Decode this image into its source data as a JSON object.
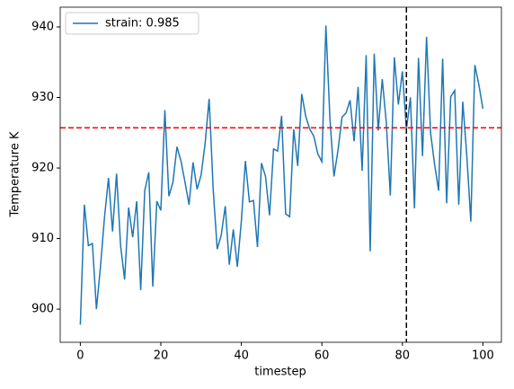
{
  "chart_data": {
    "type": "line",
    "xlabel": "timestep",
    "ylabel": "Temperature K",
    "x": [
      0,
      1,
      2,
      3,
      4,
      5,
      6,
      7,
      8,
      9,
      10,
      11,
      12,
      13,
      14,
      15,
      16,
      17,
      18,
      19,
      20,
      21,
      22,
      23,
      24,
      25,
      26,
      27,
      28,
      29,
      30,
      31,
      32,
      33,
      34,
      35,
      36,
      37,
      38,
      39,
      40,
      41,
      42,
      43,
      44,
      45,
      46,
      47,
      48,
      49,
      50,
      51,
      52,
      53,
      54,
      55,
      56,
      57,
      58,
      59,
      60,
      61,
      62,
      63,
      64,
      65,
      66,
      67,
      68,
      69,
      70,
      71,
      72,
      73,
      74,
      75,
      76,
      77,
      78,
      79,
      80,
      81,
      82,
      83,
      84,
      85,
      86,
      87,
      88,
      89,
      90,
      91,
      92,
      93,
      94,
      95,
      96,
      97,
      98,
      99,
      100
    ],
    "series": [
      {
        "name": "strain: 0.985",
        "color": "#1f77b4",
        "values": [
          897.8,
          914.8,
          909,
          909.3,
          900,
          906,
          913,
          918.6,
          911,
          919.2,
          909,
          904.2,
          914.4,
          910.2,
          915.3,
          902.7,
          916.8,
          919.4,
          903.2,
          915.3,
          914,
          928.2,
          916,
          918,
          923,
          921,
          918,
          914.8,
          920.8,
          917,
          919,
          923.5,
          929.8,
          917,
          908.5,
          910.5,
          914.6,
          906.3,
          911.3,
          906,
          912.5,
          921,
          915.2,
          915.4,
          908.8,
          920.7,
          918.8,
          913.3,
          922.7,
          922.4,
          927.4,
          913.5,
          913.1,
          925.5,
          920.3,
          930.5,
          927.3,
          925.5,
          924.5,
          922,
          920.9,
          940.2,
          927,
          918.8,
          922.5,
          927.2,
          927.8,
          929.6,
          923.8,
          931.5,
          919.6,
          936,
          908.2,
          936.2,
          925.3,
          932.6,
          926.5,
          916.1,
          935.7,
          929,
          933.7,
          925.5,
          930,
          914.3,
          935.6,
          921.7,
          938.6,
          925,
          920.5,
          916.8,
          935.5,
          915,
          930.1,
          931,
          914.8,
          929.4,
          921.8,
          912.4,
          934.6,
          931.8,
          928.4
        ]
      }
    ],
    "hline": {
      "value": 925.7,
      "color": "#ff0000"
    },
    "vline": {
      "value": 81,
      "color": "#000000"
    },
    "xlim": [
      -5,
      104.6
    ],
    "ylim": [
      895.3,
      942.8
    ],
    "xticks": [
      0,
      20,
      40,
      60,
      80,
      100
    ],
    "yticks": [
      900,
      910,
      920,
      930,
      940
    ],
    "legend": "upper left"
  }
}
